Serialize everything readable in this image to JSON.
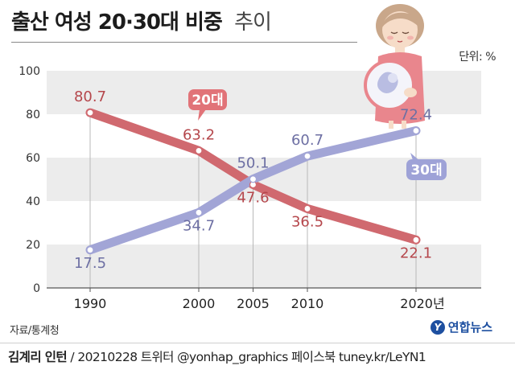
{
  "title": {
    "main": "출산 여성 20·30대 비중",
    "sub": "추이"
  },
  "unit_label": "단위: %",
  "source": "자료/통계청",
  "logo_text": "연합뉴스",
  "credit": {
    "author": "김계리 인턴",
    "rest": " / 20210228  트위터 @yonhap_graphics  페이스북 tuney.kr/LeYN1"
  },
  "colors": {
    "series_20s": "#d0696f",
    "series_30s": "#a2a5d6",
    "label_20s": "#b5474c",
    "label_30s": "#6d6fa3",
    "band": "#ececec",
    "badge_20s": "#e17378",
    "badge_30s": "#9ea2d7"
  },
  "icons": {
    "pregnant": "pregnant-woman-illustration",
    "logo": "yonhap-logo-icon"
  },
  "chart_data": {
    "type": "line",
    "categories": [
      "1990",
      "2000",
      "2005",
      "2010",
      "2020년"
    ],
    "x": [
      1990,
      2000,
      2005,
      2010,
      2020
    ],
    "ylim": [
      0,
      100
    ],
    "yticks": [
      "0",
      "20",
      "40",
      "60",
      "80",
      "100"
    ],
    "ytick_values": [
      0,
      20,
      40,
      60,
      80,
      100
    ],
    "grid": false,
    "legend": "inline badges on lines",
    "series": [
      {
        "name": "20대",
        "values": [
          80.7,
          63.2,
          47.6,
          36.5,
          22.1
        ],
        "labels": [
          "80.7",
          "63.2",
          "47.6",
          "36.5",
          "22.1"
        ]
      },
      {
        "name": "30대",
        "values": [
          17.5,
          34.7,
          50.1,
          60.7,
          72.4
        ],
        "labels": [
          "17.5",
          "34.7",
          "50.1",
          "60.7",
          "72.4"
        ]
      }
    ]
  }
}
